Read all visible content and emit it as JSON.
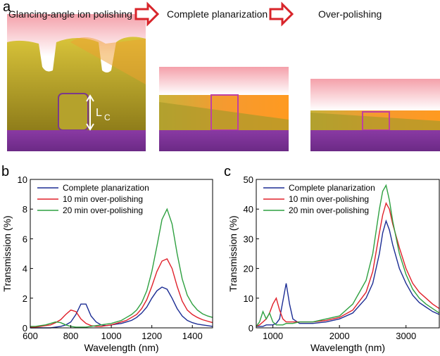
{
  "figure": {
    "panel": "a",
    "steps": [
      "Glancing-angle ion polishing",
      "Complete planarization",
      "Over-polishing"
    ],
    "lc": [
      "L",
      "C"
    ]
  },
  "chart_data": [
    {
      "type": "line",
      "panel": "b",
      "xlabel": "Wavelength (nm)",
      "ylabel": "Transmission (%)",
      "xlim": [
        600,
        1500
      ],
      "xticks": [
        600,
        800,
        1000,
        1200,
        1400
      ],
      "ylim": [
        0,
        10
      ],
      "yticks": [
        0,
        2,
        4,
        6,
        8,
        10
      ],
      "legend": "upper left",
      "x": [
        600,
        625,
        650,
        675,
        700,
        725,
        750,
        775,
        800,
        825,
        850,
        875,
        900,
        925,
        950,
        975,
        1000,
        1025,
        1050,
        1075,
        1100,
        1125,
        1150,
        1175,
        1200,
        1225,
        1250,
        1275,
        1300,
        1325,
        1350,
        1375,
        1400,
        1425,
        1450,
        1475,
        1500
      ],
      "series": [
        {
          "name": "Complete planarization",
          "color": "#1c2d94",
          "values": [
            0,
            0,
            0,
            0,
            0,
            0.05,
            0.1,
            0.2,
            0.4,
            0.9,
            1.6,
            1.6,
            0.8,
            0.4,
            0.2,
            0.15,
            0.2,
            0.25,
            0.3,
            0.4,
            0.5,
            0.7,
            1.0,
            1.4,
            2.0,
            2.5,
            2.75,
            2.6,
            2.0,
            1.3,
            0.8,
            0.5,
            0.35,
            0.25,
            0.2,
            0.15,
            0.1
          ]
        },
        {
          "name": "10 min over-polishing",
          "color": "#e0202a",
          "values": [
            0.05,
            0.05,
            0.1,
            0.15,
            0.2,
            0.35,
            0.55,
            0.9,
            1.2,
            1.1,
            0.6,
            0.3,
            0.15,
            0.1,
            0.1,
            0.15,
            0.2,
            0.3,
            0.4,
            0.5,
            0.7,
            0.9,
            1.3,
            1.9,
            2.8,
            3.8,
            4.5,
            4.65,
            4.0,
            2.8,
            1.8,
            1.2,
            0.9,
            0.7,
            0.55,
            0.45,
            0.35
          ]
        },
        {
          "name": "20 min over-polishing",
          "color": "#2ea040",
          "values": [
            0.1,
            0.1,
            0.15,
            0.2,
            0.3,
            0.4,
            0.35,
            0.2,
            0.1,
            0.05,
            0.05,
            0.05,
            0.1,
            0.15,
            0.2,
            0.25,
            0.3,
            0.4,
            0.5,
            0.7,
            0.9,
            1.2,
            1.7,
            2.5,
            3.8,
            5.5,
            7.3,
            8.0,
            7.0,
            5.0,
            3.3,
            2.2,
            1.6,
            1.2,
            0.95,
            0.8,
            0.7
          ]
        }
      ]
    },
    {
      "type": "line",
      "panel": "c",
      "xlabel": "Wavelength (nm)",
      "ylabel": "Transmission (%)",
      "xlim": [
        750,
        3500
      ],
      "xticks": [
        1000,
        2000,
        3000
      ],
      "ylim": [
        0,
        50
      ],
      "yticks": [
        0,
        10,
        20,
        30,
        40,
        50
      ],
      "legend": "upper left",
      "x": [
        750,
        800,
        850,
        900,
        950,
        1000,
        1050,
        1100,
        1150,
        1200,
        1250,
        1300,
        1400,
        1500,
        1600,
        1800,
        2000,
        2200,
        2400,
        2500,
        2600,
        2650,
        2700,
        2750,
        2800,
        2900,
        3000,
        3100,
        3200,
        3300,
        3400,
        3500
      ],
      "series": [
        {
          "name": "Complete planarization",
          "color": "#1c2d94",
          "values": [
            0.5,
            0.5,
            0.5,
            1,
            1,
            1,
            1.5,
            3,
            9,
            15,
            8,
            3,
            1.5,
            1.5,
            1.5,
            2,
            3,
            5,
            10,
            15,
            25,
            32,
            36,
            33,
            28,
            20,
            15,
            11,
            8.5,
            7,
            5.5,
            4.5
          ]
        },
        {
          "name": "10 min over-polishing",
          "color": "#e0202a",
          "values": [
            0.5,
            1,
            2,
            3,
            5,
            8,
            10,
            6,
            3,
            2,
            2,
            2,
            2,
            2,
            2,
            2.5,
            3.5,
            6,
            12,
            19,
            32,
            38,
            42,
            40,
            35,
            27,
            20,
            15,
            12,
            10,
            8,
            6.5
          ]
        },
        {
          "name": "20 min over-polishing",
          "color": "#2ea040",
          "values": [
            0.5,
            2,
            5.5,
            3,
            5,
            2,
            1,
            1,
            1,
            1.5,
            1.5,
            1.5,
            2,
            2,
            2,
            3,
            4,
            8,
            16,
            25,
            40,
            46,
            48,
            43,
            36,
            25,
            18,
            13,
            10,
            8,
            6.5,
            5
          ]
        }
      ]
    }
  ]
}
